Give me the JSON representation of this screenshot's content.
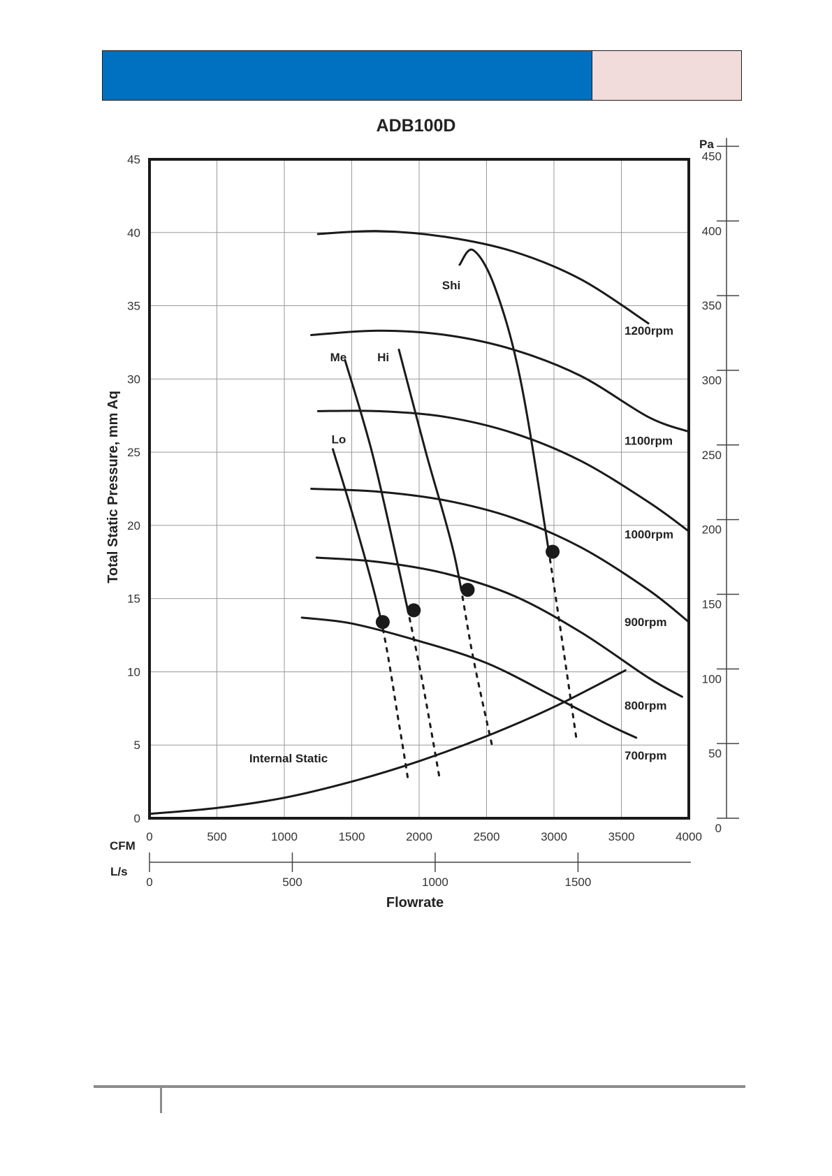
{
  "chart_data": {
    "type": "line",
    "title": "ADB100D",
    "xlabel": "Flowrate",
    "ylabel": "Total Static Pressure, mm Aq",
    "x_unit_primary": "CFM",
    "x_unit_secondary": "L/s",
    "y_unit_secondary": "Pa",
    "xlim": [
      0,
      4000
    ],
    "ylim": [
      0,
      45
    ],
    "x_ticks": [
      0,
      500,
      1000,
      1500,
      2000,
      2500,
      3000,
      3500,
      4000
    ],
    "y_ticks": [
      0,
      5,
      10,
      15,
      20,
      25,
      30,
      35,
      40,
      45
    ],
    "x2_ticks": [
      0,
      500,
      1000,
      1500
    ],
    "y2_ticks": [
      0,
      50,
      100,
      150,
      200,
      250,
      300,
      350,
      400,
      450
    ],
    "grid": true,
    "speed_curves": [
      {
        "name": "1200rpm",
        "x": [
          1250,
          1700,
          2200,
          2700,
          3200,
          3700
        ],
        "y": [
          39.9,
          40.1,
          39.7,
          38.7,
          36.8,
          33.8
        ]
      },
      {
        "name": "1100rpm",
        "x": [
          1200,
          1700,
          2200,
          2700,
          3200,
          3700,
          4000
        ],
        "y": [
          33.0,
          33.3,
          33.0,
          32.0,
          30.2,
          27.4,
          26.4
        ]
      },
      {
        "name": "1000rpm",
        "x": [
          1250,
          1700,
          2200,
          2700,
          3200,
          3700,
          4000
        ],
        "y": [
          27.8,
          27.8,
          27.4,
          26.3,
          24.4,
          21.6,
          19.6
        ]
      },
      {
        "name": "900rpm",
        "x": [
          1200,
          1700,
          2200,
          2700,
          3200,
          3700,
          4000
        ],
        "y": [
          22.5,
          22.3,
          21.7,
          20.5,
          18.5,
          15.6,
          13.4
        ]
      },
      {
        "name": "800rpm",
        "x": [
          1240,
          1700,
          2200,
          2700,
          3200,
          3700,
          3950
        ],
        "y": [
          17.8,
          17.5,
          16.7,
          15.2,
          12.7,
          9.6,
          8.3
        ]
      },
      {
        "name": "700rpm",
        "x": [
          1130,
          1500,
          2000,
          2500,
          3000,
          3400,
          3610
        ],
        "y": [
          13.7,
          13.3,
          12.1,
          10.6,
          8.3,
          6.4,
          5.5
        ]
      }
    ],
    "system_curves": [
      {
        "name": "Lo",
        "x": [
          1360,
          1530,
          1720,
          1850,
          1920
        ],
        "y": [
          25.2,
          20.0,
          13.4,
          6.5,
          2.5
        ]
      },
      {
        "name": "Me",
        "x": [
          1450,
          1650,
          1850,
          2010,
          2150
        ],
        "y": [
          31.3,
          25.0,
          17.0,
          10.0,
          2.8
        ]
      },
      {
        "name": "Hi",
        "x": [
          1850,
          2050,
          2260,
          2400,
          2540
        ],
        "y": [
          32.0,
          25.0,
          18.0,
          11.0,
          5.0
        ]
      },
      {
        "name": "Shi",
        "x": [
          2300,
          2400,
          2560,
          2750,
          2960,
          3170
        ],
        "y": [
          37.8,
          38.8,
          36.3,
          30.0,
          18.3,
          5.2
        ]
      }
    ],
    "internal_static": {
      "name": "Internal Static",
      "x": [
        0,
        500,
        1000,
        1500,
        2000,
        2500,
        3000,
        3530
      ],
      "y": [
        0.3,
        0.7,
        1.4,
        2.5,
        3.9,
        5.6,
        7.6,
        10.1
      ]
    },
    "operating_points": [
      {
        "x": 1730,
        "y": 13.4
      },
      {
        "x": 1960,
        "y": 14.2
      },
      {
        "x": 2360,
        "y": 15.6
      },
      {
        "x": 2990,
        "y": 18.2
      }
    ]
  }
}
